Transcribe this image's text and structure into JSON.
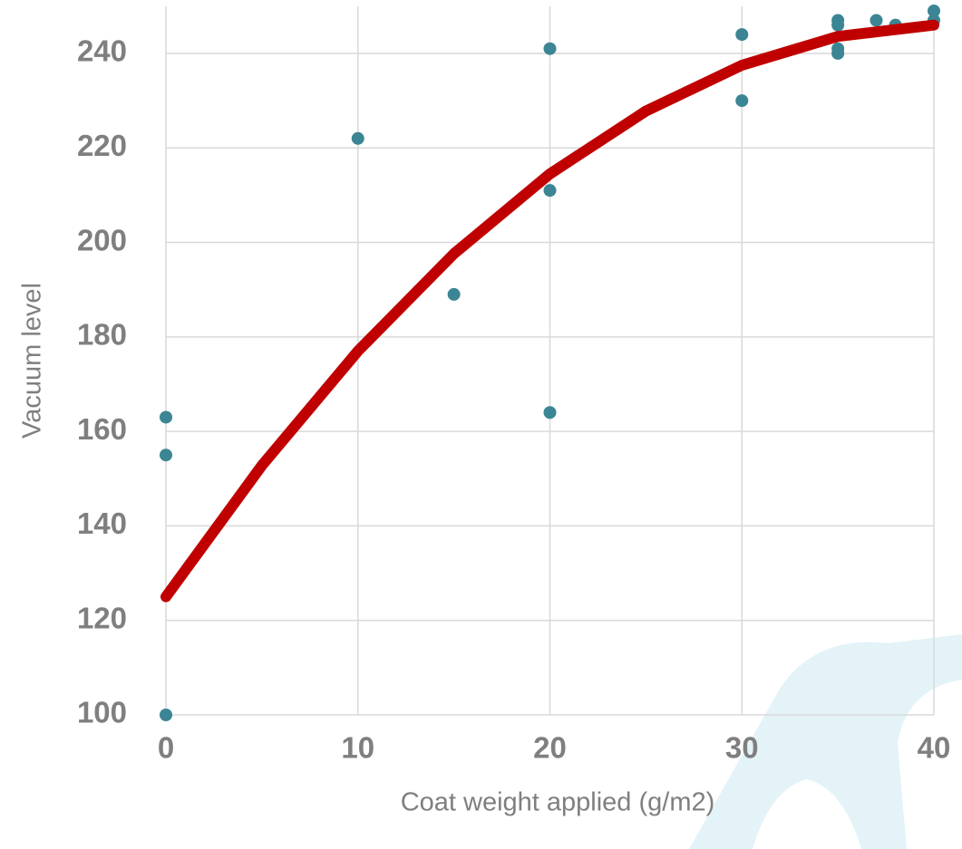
{
  "chart_data": {
    "type": "scatter",
    "xlabel": "Coat weight applied (g/m2)",
    "ylabel": "Vacuum  level",
    "xlim": [
      0,
      40
    ],
    "ylim": [
      100,
      250
    ],
    "xticks": [
      0,
      10,
      20,
      30,
      40
    ],
    "yticks": [
      100,
      120,
      140,
      160,
      180,
      200,
      220,
      240
    ],
    "grid": true,
    "series": [
      {
        "mode": "markers",
        "color": "#3b8594",
        "x": [
          0,
          0,
          0,
          10,
          15,
          20,
          20,
          20,
          30,
          30,
          35,
          35,
          35,
          35,
          37,
          38,
          40,
          40
        ],
        "values": [
          163,
          155,
          100,
          222,
          189,
          241,
          211,
          164,
          244,
          230,
          247,
          246,
          241,
          240,
          247,
          246,
          249,
          247
        ]
      },
      {
        "mode": "line",
        "color": "#c00000",
        "x": [
          0,
          5,
          10,
          15,
          20,
          25,
          30,
          35,
          40
        ],
        "values": [
          125,
          152.8,
          177,
          197.6,
          214.5,
          227.8,
          237.5,
          243.6,
          246
        ]
      }
    ]
  }
}
